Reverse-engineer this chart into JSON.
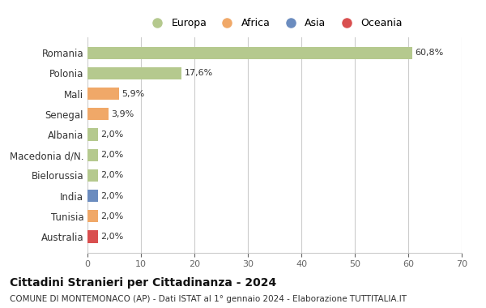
{
  "countries": [
    "Romania",
    "Polonia",
    "Mali",
    "Senegal",
    "Albania",
    "Macedonia d/N.",
    "Bielorussia",
    "India",
    "Tunisia",
    "Australia"
  ],
  "values": [
    60.8,
    17.6,
    5.9,
    3.9,
    2.0,
    2.0,
    2.0,
    2.0,
    2.0,
    2.0
  ],
  "labels": [
    "60,8%",
    "17,6%",
    "5,9%",
    "3,9%",
    "2,0%",
    "2,0%",
    "2,0%",
    "2,0%",
    "2,0%",
    "2,0%"
  ],
  "colors": [
    "#b5c98e",
    "#b5c98e",
    "#f0a868",
    "#f0a868",
    "#b5c98e",
    "#b5c98e",
    "#b5c98e",
    "#6b8cbf",
    "#f0a868",
    "#d94f4f"
  ],
  "legend": [
    {
      "label": "Europa",
      "color": "#b5c98e"
    },
    {
      "label": "Africa",
      "color": "#f0a868"
    },
    {
      "label": "Asia",
      "color": "#6b8cbf"
    },
    {
      "label": "Oceania",
      "color": "#d94f4f"
    }
  ],
  "xlim": [
    0,
    70
  ],
  "xticks": [
    0,
    10,
    20,
    30,
    40,
    50,
    60,
    70
  ],
  "title": "Cittadini Stranieri per Cittadinanza - 2024",
  "subtitle": "COMUNE DI MONTEMONACO (AP) - Dati ISTAT al 1° gennaio 2024 - Elaborazione TUTTITALIA.IT",
  "background_color": "#ffffff",
  "grid_color": "#cccccc",
  "bar_height": 0.6
}
